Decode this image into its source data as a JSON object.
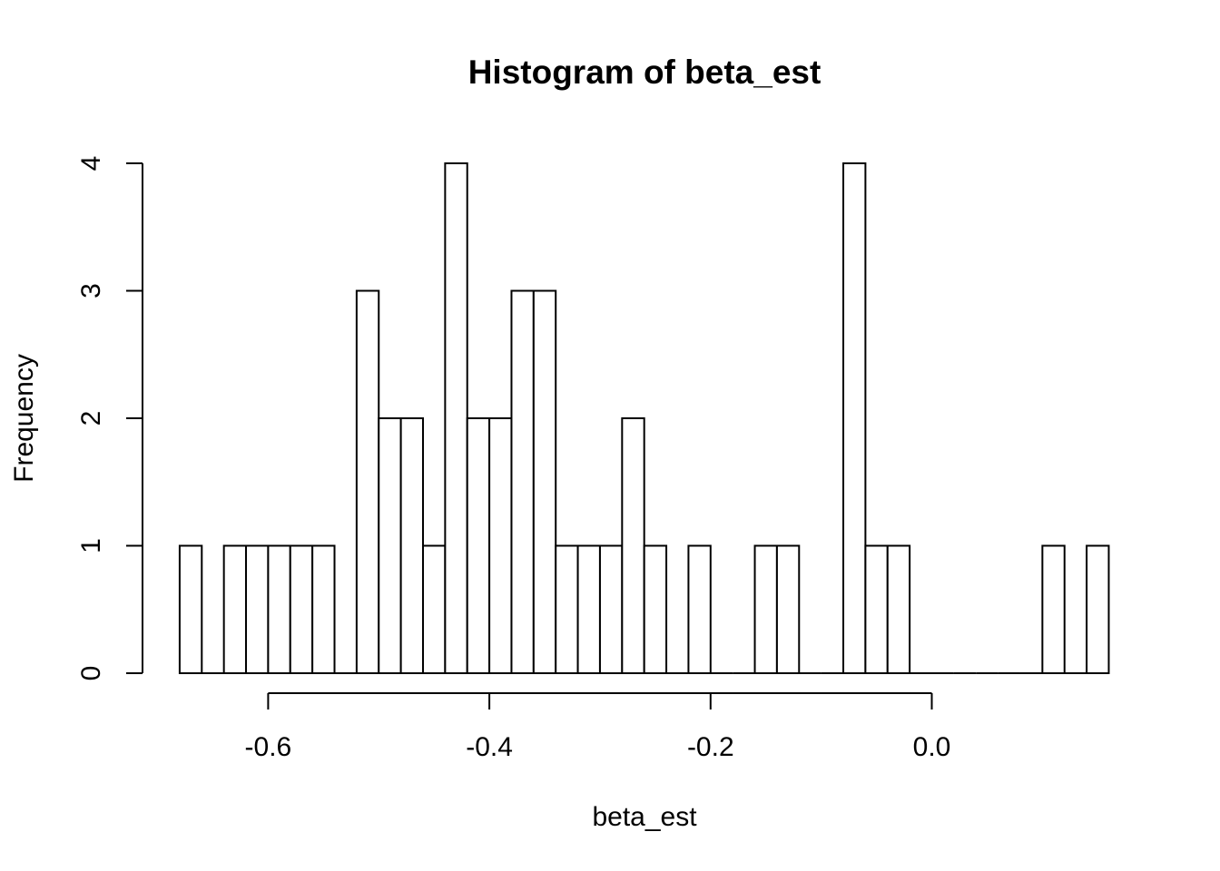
{
  "chart_data": {
    "type": "bar",
    "title": "Histogram of beta_est",
    "xlabel": "beta_est",
    "ylabel": "Frequency",
    "bin_width": 0.02,
    "bin_starts": [
      -0.68,
      -0.66,
      -0.64,
      -0.62,
      -0.6,
      -0.58,
      -0.56,
      -0.54,
      -0.52,
      -0.5,
      -0.48,
      -0.46,
      -0.44,
      -0.42,
      -0.4,
      -0.38,
      -0.36,
      -0.34,
      -0.32,
      -0.3,
      -0.28,
      -0.26,
      -0.24,
      -0.22,
      -0.2,
      -0.18,
      -0.16,
      -0.14,
      -0.12,
      -0.1,
      -0.08,
      -0.06,
      -0.04,
      -0.02,
      0.0,
      0.02,
      0.04,
      0.06,
      0.08,
      0.1,
      0.12,
      0.14
    ],
    "values": [
      1,
      0,
      1,
      1,
      1,
      1,
      1,
      0,
      3,
      2,
      2,
      1,
      4,
      2,
      2,
      3,
      3,
      1,
      1,
      1,
      2,
      1,
      0,
      1,
      0,
      0,
      1,
      1,
      0,
      0,
      4,
      1,
      1,
      0,
      0,
      0,
      0,
      0,
      0,
      1,
      0,
      1
    ],
    "xlim": [
      -0.68,
      0.16
    ],
    "ylim": [
      0,
      4
    ],
    "x_ticks": [
      -0.6,
      -0.4,
      -0.2,
      0.0
    ],
    "x_tick_labels": [
      "-0.6",
      "-0.4",
      "-0.2",
      "0.0"
    ],
    "y_ticks": [
      0,
      1,
      2,
      3,
      4
    ],
    "y_tick_labels": [
      "0",
      "1",
      "2",
      "3",
      "4"
    ],
    "grid": false,
    "bar_fill": "#ffffff",
    "bar_stroke": "#000000"
  }
}
